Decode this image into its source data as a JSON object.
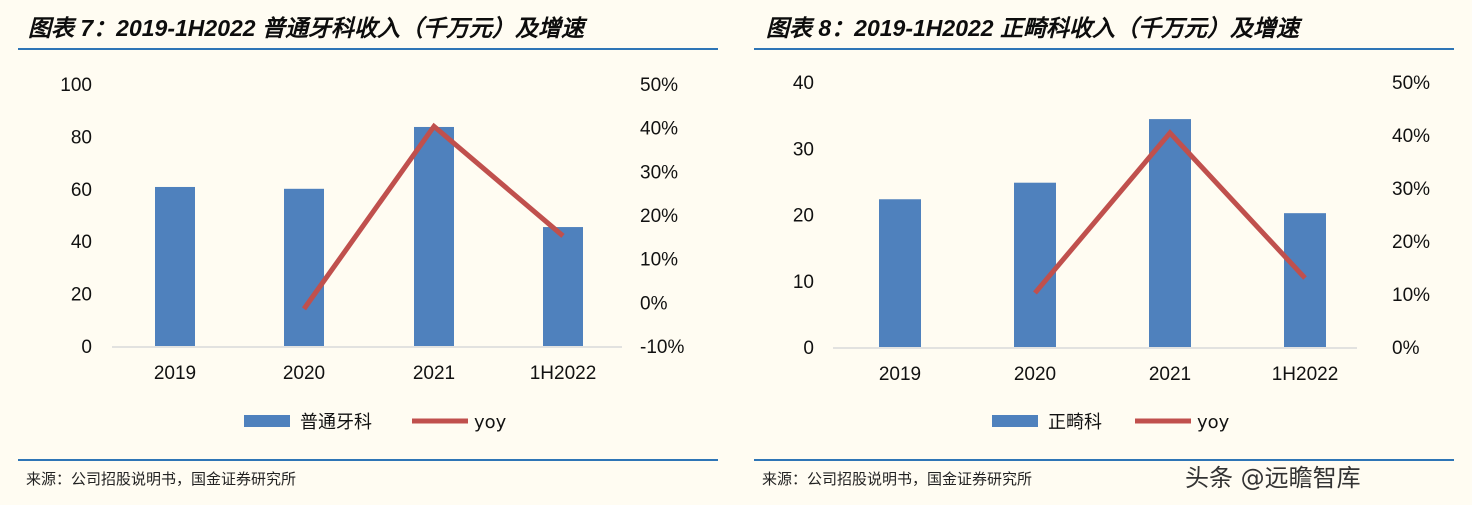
{
  "colors": {
    "bar": "#4f81bd",
    "line": "#c0504d",
    "rule": "#2e75b6",
    "axis": "#d9d9d9"
  },
  "watermark": "头条 @远瞻智库",
  "chart_data": [
    {
      "type": "bar",
      "title": "图表 7：2019-1H2022 普通牙科收入（千万元）及增速",
      "categories": [
        "2019",
        "2020",
        "2021",
        "1H2022"
      ],
      "series": [
        {
          "name": "普通牙科",
          "type": "bar",
          "axis": "left",
          "values": [
            60.7,
            60,
            83.6,
            45.4
          ]
        },
        {
          "name": "yoy",
          "type": "line",
          "axis": "right",
          "values": [
            null,
            -1.5,
            40.3,
            15.2
          ]
        }
      ],
      "ylim": [
        0,
        100
      ],
      "yticks": [
        "0",
        "20",
        "40",
        "60",
        "80",
        "100"
      ],
      "y2lim": [
        -10,
        50
      ],
      "y2ticks": [
        "-10%",
        "0%",
        "10%",
        "20%",
        "30%",
        "40%",
        "50%"
      ],
      "legend": "bottom",
      "grid": false,
      "source": "来源：公司招股说明书，国金证券研究所"
    },
    {
      "type": "bar",
      "title": "图表 8：2019-1H2022 正畸科收入（千万元）及增速",
      "categories": [
        "2019",
        "2020",
        "2021",
        "1H2022"
      ],
      "series": [
        {
          "name": "正畸科",
          "type": "bar",
          "axis": "left",
          "values": [
            22.3,
            24.8,
            34.4,
            20.2
          ]
        },
        {
          "name": "yoy",
          "type": "line",
          "axis": "right",
          "values": [
            null,
            10.2,
            40.4,
            13
          ]
        }
      ],
      "ylim": [
        0,
        40
      ],
      "yticks": [
        "0",
        "10",
        "20",
        "30",
        "40"
      ],
      "y2lim": [
        0,
        50
      ],
      "y2ticks": [
        "0%",
        "10%",
        "20%",
        "30%",
        "40%",
        "50%"
      ],
      "legend": "bottom",
      "grid": false,
      "source": "来源：公司招股说明书，国金证券研究所"
    }
  ]
}
